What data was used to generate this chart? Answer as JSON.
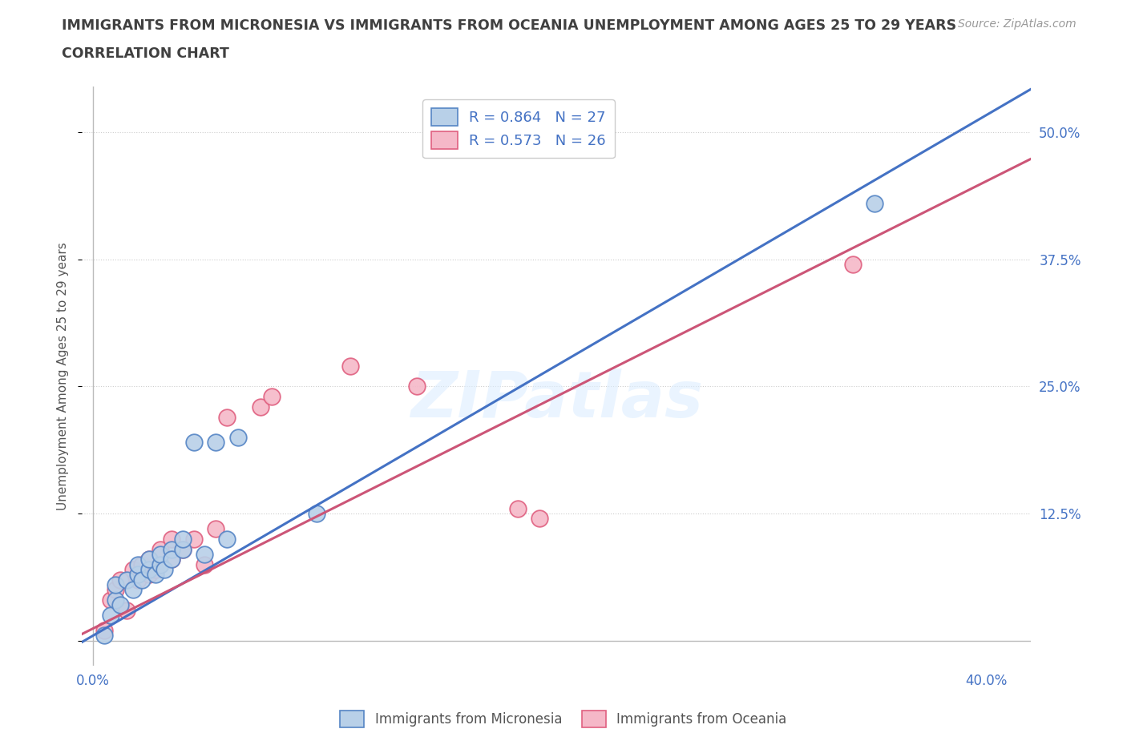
{
  "title_line1": "IMMIGRANTS FROM MICRONESIA VS IMMIGRANTS FROM OCEANIA UNEMPLOYMENT AMONG AGES 25 TO 29 YEARS",
  "title_line2": "CORRELATION CHART",
  "source": "Source: ZipAtlas.com",
  "ylabel_label": "Unemployment Among Ages 25 to 29 years",
  "legend_blue_r": "R = 0.864",
  "legend_blue_n": "N = 27",
  "legend_pink_r": "R = 0.573",
  "legend_pink_n": "N = 26",
  "watermark": "ZIPatlas",
  "blue_color": "#b8d0e8",
  "blue_edge_color": "#5585c5",
  "blue_line_color": "#4472c4",
  "pink_color": "#f5b8c8",
  "pink_edge_color": "#e06080",
  "pink_line_color": "#cc5577",
  "title_color": "#404040",
  "axis_label_color": "#4472c4",
  "blue_scatter_x": [
    0.005,
    0.008,
    0.01,
    0.01,
    0.012,
    0.015,
    0.018,
    0.02,
    0.02,
    0.022,
    0.025,
    0.025,
    0.028,
    0.03,
    0.03,
    0.032,
    0.035,
    0.035,
    0.04,
    0.04,
    0.045,
    0.05,
    0.055,
    0.06,
    0.065,
    0.1,
    0.35
  ],
  "blue_scatter_y": [
    0.005,
    0.025,
    0.04,
    0.055,
    0.035,
    0.06,
    0.05,
    0.065,
    0.075,
    0.06,
    0.07,
    0.08,
    0.065,
    0.075,
    0.085,
    0.07,
    0.09,
    0.08,
    0.09,
    0.1,
    0.195,
    0.085,
    0.195,
    0.1,
    0.2,
    0.125,
    0.43
  ],
  "pink_scatter_x": [
    0.005,
    0.008,
    0.01,
    0.012,
    0.015,
    0.018,
    0.02,
    0.022,
    0.025,
    0.025,
    0.028,
    0.03,
    0.035,
    0.035,
    0.04,
    0.045,
    0.05,
    0.055,
    0.06,
    0.075,
    0.08,
    0.115,
    0.145,
    0.19,
    0.2,
    0.34
  ],
  "pink_scatter_y": [
    0.01,
    0.04,
    0.05,
    0.06,
    0.03,
    0.07,
    0.06,
    0.075,
    0.065,
    0.08,
    0.07,
    0.09,
    0.08,
    0.1,
    0.09,
    0.1,
    0.075,
    0.11,
    0.22,
    0.23,
    0.24,
    0.27,
    0.25,
    0.13,
    0.12,
    0.37
  ],
  "blue_line_slope": 1.28,
  "blue_line_intercept": 0.005,
  "pink_line_slope": 1.1,
  "pink_line_intercept": 0.012,
  "xlim": [
    -0.005,
    0.42
  ],
  "ylim": [
    -0.025,
    0.545
  ],
  "yticks": [
    0.0,
    0.125,
    0.25,
    0.375,
    0.5
  ],
  "ytick_labels": [
    "",
    "12.5%",
    "25.0%",
    "37.5%",
    "50.0%"
  ],
  "xticks": [
    0.0,
    0.05,
    0.1,
    0.15,
    0.2,
    0.25,
    0.3,
    0.35,
    0.4
  ],
  "xtick_labels": [
    "0.0%",
    "",
    "",
    "",
    "",
    "",
    "",
    "",
    "40.0%"
  ]
}
